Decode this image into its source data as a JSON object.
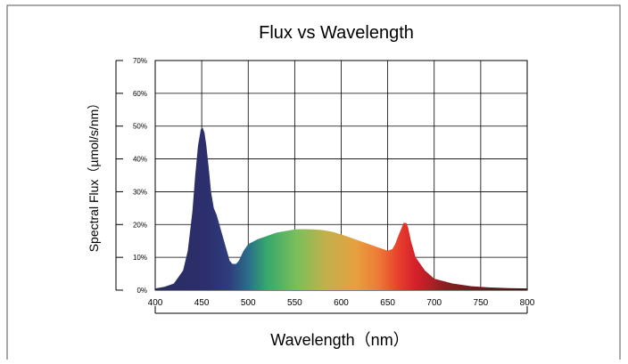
{
  "chart_data": {
    "type": "area",
    "title": "Flux vs Wavelength",
    "xlabel": "Wavelength（nm）",
    "ylabel": "Spectral Flux（µmol/s/nm）",
    "xlim": [
      400,
      800
    ],
    "ylim": [
      0,
      70
    ],
    "x_ticks": [
      400,
      450,
      500,
      550,
      600,
      650,
      700,
      750,
      800
    ],
    "x_tick_labels": [
      "400",
      "450",
      "500",
      "550",
      "600",
      "650",
      "700",
      "750",
      "800"
    ],
    "y_ticks": [
      0,
      10,
      20,
      30,
      40,
      50,
      60,
      70
    ],
    "y_tick_labels": [
      "0%",
      "10%",
      "20%",
      "30%",
      "40%",
      "50%",
      "60%",
      "70%"
    ],
    "grid": true,
    "legend": "none",
    "fill": "spectral-gradient",
    "series": [
      {
        "x": [
          400,
          410,
          420,
          430,
          435,
          440,
          443,
          446,
          449,
          451,
          453,
          455,
          458,
          460,
          463,
          466,
          470,
          475,
          480,
          483,
          487,
          490,
          495,
          500,
          510,
          520,
          530,
          540,
          550,
          560,
          570,
          580,
          590,
          600,
          610,
          620,
          630,
          640,
          645,
          650,
          655,
          658,
          662,
          665,
          667,
          670,
          672,
          675,
          680,
          690,
          700,
          720,
          740,
          760,
          780,
          800
        ],
        "y": [
          0.5,
          1,
          2,
          6,
          12,
          24,
          35,
          44,
          49,
          49.5,
          48,
          44,
          36,
          30,
          25,
          23,
          19,
          14,
          9,
          8,
          8,
          9,
          12,
          14,
          15.5,
          16.5,
          17.5,
          18,
          18.5,
          18.6,
          18.5,
          18.3,
          17.8,
          17,
          16,
          15,
          14,
          13,
          12.5,
          12,
          12.5,
          14,
          17,
          19,
          20.5,
          20.5,
          19,
          15,
          10,
          6,
          3.5,
          2,
          1.2,
          0.8,
          0.6,
          0.5
        ]
      }
    ]
  }
}
